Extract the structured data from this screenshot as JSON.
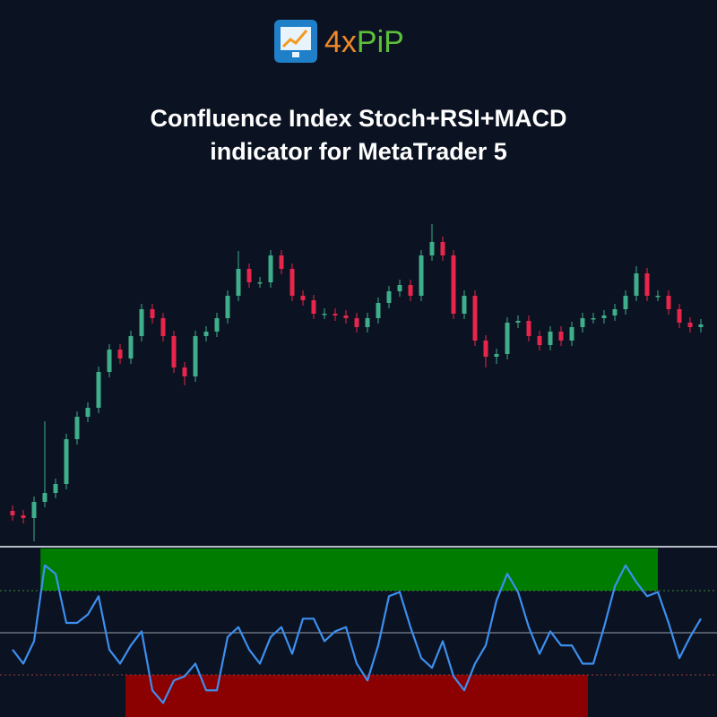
{
  "brand": [
    "4x",
    "PiP"
  ],
  "chart_data": [
    {
      "type": "candlestick",
      "title": "Confluence Index Stoch+RSI+MACD",
      "subtitle": "indicator for MetaTrader 5",
      "up_color": "#3fae8a",
      "down_color": "#e8254b",
      "ylim": [
        190,
        560
      ],
      "open": [
        230,
        225,
        222,
        240,
        250,
        260,
        310,
        335,
        345,
        385,
        410,
        400,
        425,
        455,
        445,
        425,
        390,
        380,
        425,
        430,
        445,
        470,
        500,
        485,
        485,
        515,
        500,
        470,
        465,
        450,
        450,
        448,
        445,
        435,
        445,
        462,
        475,
        482,
        470,
        515,
        530,
        515,
        450,
        470,
        420,
        402,
        405,
        440,
        442,
        425,
        415,
        430,
        420,
        435,
        445,
        445,
        448,
        455,
        470,
        495,
        470,
        470,
        455,
        440,
        435
      ],
      "high": [
        236,
        231,
        246,
        330,
        266,
        316,
        341,
        351,
        391,
        416,
        416,
        431,
        461,
        461,
        451,
        431,
        396,
        431,
        436,
        451,
        476,
        520,
        506,
        491,
        521,
        521,
        506,
        476,
        471,
        456,
        456,
        454,
        451,
        451,
        468,
        481,
        488,
        488,
        521,
        550,
        536,
        521,
        476,
        476,
        426,
        411,
        446,
        448,
        448,
        431,
        436,
        436,
        441,
        451,
        451,
        454,
        461,
        476,
        503,
        501,
        476,
        476,
        461,
        446,
        444
      ],
      "low": [
        219,
        216,
        196,
        234,
        244,
        254,
        304,
        329,
        339,
        379,
        394,
        394,
        419,
        439,
        419,
        384,
        370,
        374,
        419,
        424,
        439,
        464,
        479,
        479,
        479,
        494,
        464,
        459,
        444,
        444,
        442,
        439,
        429,
        429,
        439,
        456,
        469,
        464,
        464,
        509,
        509,
        444,
        444,
        414,
        390,
        394,
        399,
        434,
        419,
        409,
        409,
        414,
        414,
        429,
        439,
        439,
        442,
        449,
        464,
        464,
        464,
        449,
        434,
        429,
        429
      ],
      "close": [
        225,
        222,
        240,
        250,
        260,
        310,
        335,
        345,
        385,
        410,
        400,
        425,
        455,
        445,
        425,
        390,
        380,
        425,
        430,
        445,
        470,
        500,
        485,
        485,
        515,
        500,
        470,
        465,
        450,
        450,
        448,
        445,
        435,
        445,
        462,
        475,
        482,
        470,
        515,
        530,
        515,
        450,
        470,
        420,
        402,
        405,
        440,
        442,
        425,
        415,
        430,
        420,
        435,
        445,
        445,
        448,
        455,
        470,
        495,
        470,
        470,
        455,
        440,
        435,
        438
      ]
    },
    {
      "type": "line",
      "color": "#3d8fef",
      "ylim": [
        -10,
        110
      ],
      "levels": [
        80,
        50,
        20
      ],
      "zones": [
        {
          "color": "#007d00",
          "y": [
            80,
            110
          ],
          "x": [
            2.6,
            60
          ]
        },
        {
          "color": "#8b0000",
          "y": [
            -10,
            20
          ],
          "x": [
            10.5,
            53.5
          ]
        }
      ],
      "values": [
        38,
        28,
        44,
        98,
        92,
        57,
        57,
        63,
        76,
        38,
        28,
        41,
        51,
        9,
        0,
        16,
        19,
        28,
        9,
        9,
        47,
        54,
        38,
        28,
        47,
        54,
        35,
        60,
        60,
        44,
        51,
        54,
        28,
        16,
        41,
        76,
        79,
        54,
        32,
        25,
        44,
        19,
        9,
        28,
        41,
        73,
        92,
        79,
        54,
        35,
        51,
        41,
        41,
        28,
        28,
        54,
        83,
        98,
        86,
        76,
        79,
        57,
        32,
        47,
        60
      ]
    }
  ]
}
